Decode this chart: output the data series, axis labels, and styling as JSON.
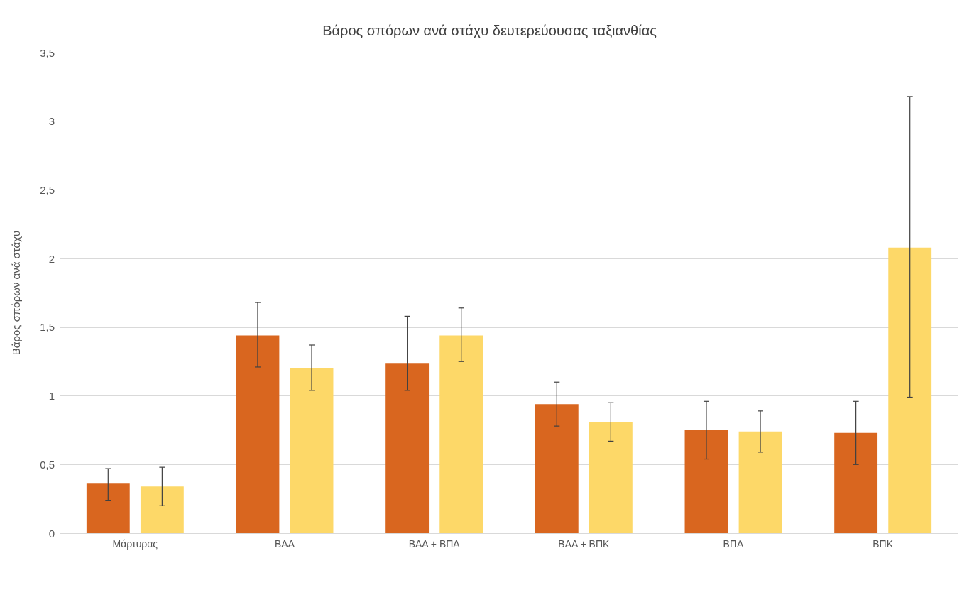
{
  "chart_data": {
    "type": "bar",
    "title": "Βάρος σπόρων ανά στάχυ δευτερεύουσας ταξιανθίας",
    "ylabel": "Βάρος σπόρων ανά στάχυ",
    "categories": [
      "Μάρτυρας",
      "ΒΑΑ",
      "ΒΑΑ + ΒΠΑ",
      "ΒΑΑ + ΒΠΚ",
      "ΒΠΑ",
      "ΒΠΚ"
    ],
    "series": [
      {
        "color": "#d9661f",
        "values": [
          0.36,
          1.44,
          1.24,
          0.94,
          0.75,
          0.73
        ],
        "errors": [
          [
            0.24,
            0.47
          ],
          [
            1.21,
            1.68
          ],
          [
            1.04,
            1.58
          ],
          [
            0.78,
            1.1
          ],
          [
            0.54,
            0.96
          ],
          [
            0.5,
            0.96
          ]
        ]
      },
      {
        "color": "#fdd868",
        "values": [
          0.34,
          1.2,
          1.44,
          0.81,
          0.74,
          2.08
        ],
        "errors": [
          [
            0.2,
            0.48
          ],
          [
            1.04,
            1.37
          ],
          [
            1.25,
            1.64
          ],
          [
            0.67,
            0.95
          ],
          [
            0.59,
            0.89
          ],
          [
            0.99,
            3.18
          ]
        ]
      }
    ],
    "ylim": [
      0,
      3.5
    ],
    "yticks": [
      {
        "value": 0,
        "label": "0"
      },
      {
        "value": 0.5,
        "label": "0,5"
      },
      {
        "value": 1,
        "label": "1"
      },
      {
        "value": 1.5,
        "label": "1,5"
      },
      {
        "value": 2,
        "label": "2"
      },
      {
        "value": 2.5,
        "label": "2,5"
      },
      {
        "value": 3,
        "label": "3"
      },
      {
        "value": 3.5,
        "label": "3,5"
      }
    ],
    "grid": "y"
  }
}
